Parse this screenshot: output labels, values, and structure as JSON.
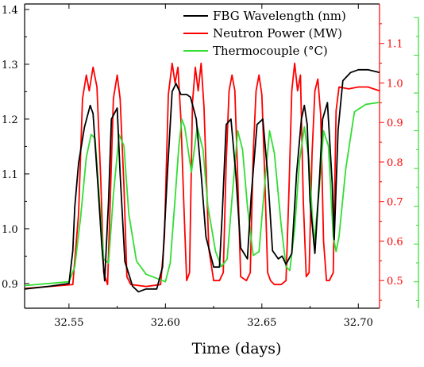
{
  "chart_data": {
    "type": "line",
    "title": "",
    "xlabel": "Time (days)",
    "ylabel_left": "",
    "ylabel_right": "",
    "xlim": [
      32.527,
      32.711
    ],
    "ylim_left": [
      0.855,
      1.41
    ],
    "ylim_right": [
      0.43,
      1.2
    ],
    "ylim_green": [
      0.43,
      1.2
    ],
    "x_ticks": [
      "32.55",
      "32.60",
      "32.65",
      "32.70"
    ],
    "y_left_ticks": [
      "0.9",
      "1.0",
      "1.1",
      "1.2",
      "1.3",
      "1.4"
    ],
    "y_right_ticks": [
      "0.5",
      "0.6",
      "0.7",
      "0.8",
      "0.9",
      "1.0",
      "1.1"
    ],
    "grid": false,
    "legend_position": "top-right",
    "series": [
      {
        "name": "FBG Wavelength (nm)",
        "color": "#000000",
        "axis": "left",
        "x": [
          32.527,
          32.54,
          32.55,
          32.552,
          32.553,
          32.555,
          32.558,
          32.561,
          32.5625,
          32.565,
          32.567,
          32.5685,
          32.5705,
          32.572,
          32.575,
          32.5765,
          32.579,
          32.583,
          32.586,
          32.59,
          32.5955,
          32.5985,
          32.601,
          32.6035,
          32.6055,
          32.608,
          32.611,
          32.613,
          32.616,
          32.6185,
          32.621,
          32.625,
          32.628,
          32.6295,
          32.6315,
          32.634,
          32.6365,
          32.639,
          32.6425,
          32.6445,
          32.6475,
          32.6505,
          32.653,
          32.6555,
          32.6585,
          32.6605,
          32.6625,
          32.6655,
          32.668,
          32.6705,
          32.672,
          32.6735,
          32.675,
          32.6775,
          32.68,
          32.6815,
          32.684,
          32.6865,
          32.6875,
          32.6895,
          32.692,
          32.696,
          32.7,
          32.705,
          32.711
        ],
        "y": [
          0.89,
          0.895,
          0.9,
          0.96,
          1.04,
          1.12,
          1.185,
          1.225,
          1.21,
          1.08,
          0.97,
          0.905,
          1.05,
          1.2,
          1.22,
          1.1,
          0.94,
          0.895,
          0.885,
          0.89,
          0.89,
          0.93,
          1.1,
          1.25,
          1.265,
          1.245,
          1.245,
          1.24,
          1.2,
          1.1,
          0.985,
          0.93,
          0.93,
          1.03,
          1.19,
          1.2,
          1.1,
          0.965,
          0.945,
          1.06,
          1.19,
          1.2,
          1.1,
          0.96,
          0.945,
          0.95,
          0.935,
          0.955,
          1.1,
          1.2,
          1.225,
          1.19,
          1.05,
          0.955,
          1.1,
          1.2,
          1.23,
          1.08,
          0.98,
          1.18,
          1.27,
          1.285,
          1.29,
          1.29,
          1.285
        ]
      },
      {
        "name": "Neutron Power (MW)",
        "color": "#ff0000",
        "axis": "right",
        "x": [
          32.527,
          32.54,
          32.552,
          32.555,
          32.557,
          32.559,
          32.5605,
          32.5625,
          32.5645,
          32.5665,
          32.568,
          32.57,
          32.5715,
          32.573,
          32.575,
          32.5765,
          32.5785,
          32.58,
          32.582,
          32.59,
          32.5975,
          32.5995,
          32.6015,
          32.6035,
          32.605,
          32.6065,
          32.608,
          32.6095,
          32.611,
          32.6125,
          32.614,
          32.6155,
          32.617,
          32.6185,
          32.62,
          32.6225,
          32.625,
          32.628,
          32.63,
          32.6315,
          32.633,
          32.6345,
          32.636,
          32.6375,
          32.639,
          32.642,
          32.644,
          32.6455,
          32.647,
          32.6485,
          32.65,
          32.6515,
          32.653,
          32.6545,
          32.6565,
          32.66,
          32.6625,
          32.664,
          32.6655,
          32.667,
          32.6685,
          32.67,
          32.6715,
          32.673,
          32.6745,
          32.676,
          32.6775,
          32.679,
          32.6805,
          32.682,
          32.6835,
          32.685,
          32.687,
          32.6885,
          32.69,
          32.695,
          32.7,
          32.705,
          32.711
        ],
        "y": [
          0.48,
          0.485,
          0.49,
          0.67,
          0.96,
          1.02,
          0.98,
          1.04,
          0.99,
          0.75,
          0.52,
          0.49,
          0.72,
          0.96,
          1.02,
          0.96,
          0.74,
          0.51,
          0.49,
          0.485,
          0.49,
          0.61,
          0.97,
          1.05,
          1.0,
          1.04,
          0.91,
          0.7,
          0.5,
          0.52,
          0.95,
          1.04,
          0.98,
          1.05,
          0.94,
          0.58,
          0.5,
          0.5,
          0.52,
          0.8,
          0.98,
          1.02,
          0.98,
          0.76,
          0.51,
          0.5,
          0.52,
          0.82,
          0.98,
          1.02,
          0.97,
          0.76,
          0.52,
          0.5,
          0.49,
          0.49,
          0.5,
          0.72,
          0.98,
          1.05,
          0.98,
          1.02,
          0.7,
          0.51,
          0.52,
          0.82,
          0.98,
          1.01,
          0.92,
          0.6,
          0.5,
          0.5,
          0.52,
          0.93,
          0.99,
          0.985,
          0.99,
          0.99,
          0.98
        ]
      },
      {
        "name": "Thermocouple (°C)",
        "color": "#33dd33",
        "axis": "green",
        "x": [
          32.527,
          32.55,
          32.553,
          32.556,
          32.559,
          32.5615,
          32.5635,
          32.5655,
          32.568,
          32.5705,
          32.573,
          32.576,
          32.5785,
          32.581,
          32.585,
          32.59,
          32.6,
          32.6025,
          32.605,
          32.607,
          32.6085,
          32.61,
          32.6135,
          32.6165,
          32.6195,
          32.622,
          32.626,
          32.629,
          32.632,
          32.6345,
          32.6375,
          32.64,
          32.6425,
          32.6455,
          32.6485,
          32.6515,
          32.654,
          32.6565,
          32.66,
          32.6625,
          32.6645,
          32.667,
          32.6695,
          32.672,
          32.6745,
          32.677,
          32.6795,
          32.682,
          32.6845,
          32.687,
          32.6885,
          32.69,
          32.6935,
          32.698,
          32.704,
          32.711
        ],
        "y": [
          0.49,
          0.5,
          0.54,
          0.67,
          0.83,
          0.89,
          0.88,
          0.74,
          0.56,
          0.55,
          0.73,
          0.89,
          0.86,
          0.68,
          0.555,
          0.52,
          0.5,
          0.55,
          0.72,
          0.86,
          0.93,
          0.91,
          0.79,
          0.91,
          0.85,
          0.7,
          0.58,
          0.54,
          0.56,
          0.72,
          0.9,
          0.85,
          0.7,
          0.57,
          0.58,
          0.76,
          0.9,
          0.84,
          0.65,
          0.54,
          0.53,
          0.64,
          0.82,
          0.91,
          0.82,
          0.6,
          0.73,
          0.9,
          0.86,
          0.62,
          0.58,
          0.62,
          0.8,
          0.95,
          0.97,
          0.975
        ]
      }
    ]
  }
}
